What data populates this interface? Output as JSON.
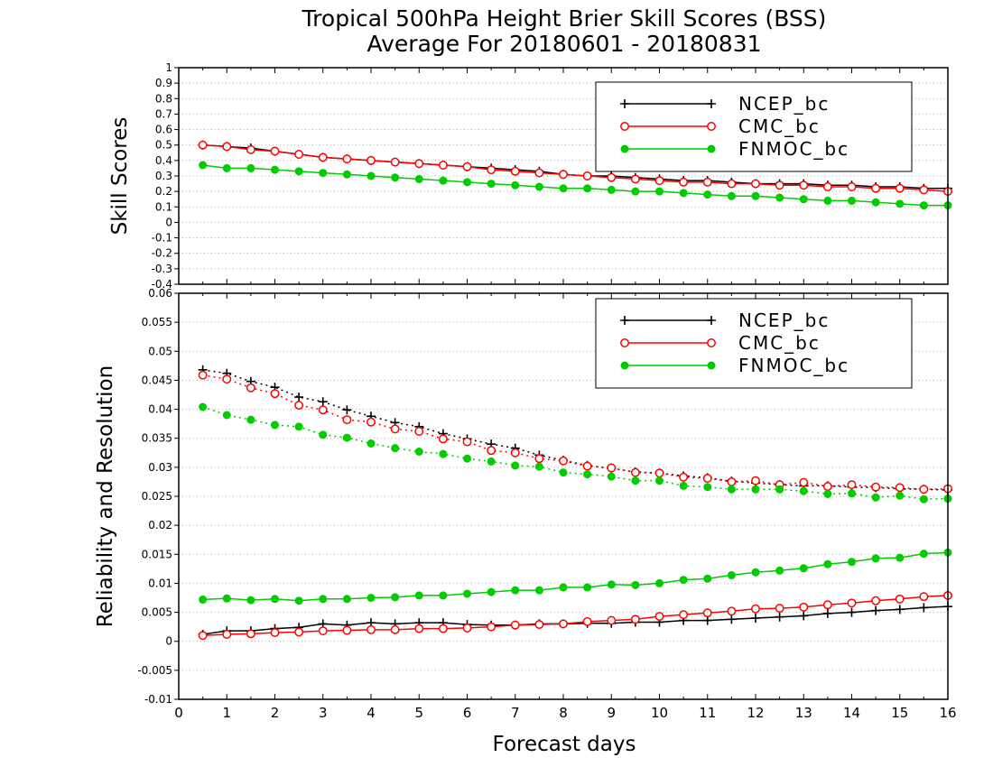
{
  "chart_data": [
    {
      "type": "line",
      "title": "Tropical 500hPa Height Brier Skill Scores (BSS)",
      "subtitle": "Average For 20180601 - 20180831",
      "ylabel": "Skill Scores",
      "xlabel": "",
      "xlim": [
        0,
        16
      ],
      "ylim": [
        -0.4,
        1
      ],
      "y_ticks": [
        "-0.4",
        "-0.3",
        "-0.2",
        "-0.1",
        "0",
        "0.1",
        "0.2",
        "0.3",
        "0.4",
        "0.5",
        "0.6",
        "0.7",
        "0.8",
        "0.9",
        "1"
      ],
      "grid": true,
      "legend_position": "top-right",
      "x": [
        0.5,
        1,
        1.5,
        2,
        2.5,
        3,
        3.5,
        4,
        4.5,
        5,
        5.5,
        6,
        6.5,
        7,
        7.5,
        8,
        8.5,
        9,
        9.5,
        10,
        10.5,
        11,
        11.5,
        12,
        12.5,
        13,
        13.5,
        14,
        14.5,
        15,
        15.5,
        16
      ],
      "series": [
        {
          "name": "NCEP_bc",
          "color": "#000000",
          "marker": "plus",
          "line": "solid",
          "values": [
            0.5,
            0.49,
            0.48,
            0.46,
            0.44,
            0.42,
            0.41,
            0.4,
            0.39,
            0.38,
            0.37,
            0.36,
            0.35,
            0.34,
            0.33,
            0.31,
            0.3,
            0.3,
            0.29,
            0.28,
            0.27,
            0.27,
            0.26,
            0.25,
            0.25,
            0.25,
            0.24,
            0.24,
            0.23,
            0.23,
            0.22,
            0.22
          ]
        },
        {
          "name": "CMC_bc",
          "color": "#ff0000",
          "marker": "open-circle",
          "line": "solid",
          "values": [
            0.5,
            0.49,
            0.47,
            0.46,
            0.44,
            0.42,
            0.41,
            0.4,
            0.39,
            0.38,
            0.37,
            0.36,
            0.34,
            0.33,
            0.32,
            0.31,
            0.3,
            0.29,
            0.28,
            0.27,
            0.26,
            0.26,
            0.25,
            0.25,
            0.24,
            0.24,
            0.23,
            0.23,
            0.22,
            0.22,
            0.21,
            0.2
          ]
        },
        {
          "name": "FNMOC_bc",
          "color": "#00cc00",
          "marker": "filled-circle",
          "line": "solid",
          "values": [
            0.37,
            0.35,
            0.35,
            0.34,
            0.33,
            0.32,
            0.31,
            0.3,
            0.29,
            0.28,
            0.27,
            0.26,
            0.25,
            0.24,
            0.23,
            0.22,
            0.22,
            0.21,
            0.2,
            0.2,
            0.19,
            0.18,
            0.17,
            0.17,
            0.16,
            0.15,
            0.14,
            0.14,
            0.13,
            0.12,
            0.11,
            0.11
          ]
        }
      ]
    },
    {
      "type": "line",
      "ylabel": "Reliability and Resolution",
      "xlabel": "Forecast days",
      "xlim": [
        0,
        16
      ],
      "ylim": [
        -0.01,
        0.06
      ],
      "x_ticks": [
        "0",
        "1",
        "2",
        "3",
        "4",
        "5",
        "6",
        "7",
        "8",
        "9",
        "10",
        "11",
        "12",
        "13",
        "14",
        "15",
        "16"
      ],
      "y_ticks": [
        "-0.01",
        "-0.005",
        "0",
        "0.005",
        "0.01",
        "0.015",
        "0.02",
        "0.025",
        "0.03",
        "0.035",
        "0.04",
        "0.045",
        "0.05",
        "0.055",
        "0.06"
      ],
      "grid": true,
      "legend_position": "top-right",
      "x": [
        0.5,
        1,
        1.5,
        2,
        2.5,
        3,
        3.5,
        4,
        4.5,
        5,
        5.5,
        6,
        6.5,
        7,
        7.5,
        8,
        8.5,
        9,
        9.5,
        10,
        10.5,
        11,
        11.5,
        12,
        12.5,
        13,
        13.5,
        14,
        14.5,
        15,
        15.5,
        16
      ],
      "series": [
        {
          "name": "NCEP_bc",
          "color": "#000000",
          "marker": "plus",
          "line": "dotted",
          "values": [
            0.0468,
            0.0462,
            0.0448,
            0.0438,
            0.0421,
            0.0413,
            0.0399,
            0.0388,
            0.0377,
            0.037,
            0.0358,
            0.0349,
            0.034,
            0.0333,
            0.0321,
            0.0312,
            0.0303,
            0.0298,
            0.0292,
            0.029,
            0.0285,
            0.0282,
            0.0276,
            0.0273,
            0.027,
            0.0268,
            0.0268,
            0.0266,
            0.0265,
            0.0263,
            0.0262,
            0.0261
          ]
        },
        {
          "name": "CMC_bc",
          "color": "#ff0000",
          "marker": "open-circle",
          "line": "dotted",
          "values": [
            0.0459,
            0.0452,
            0.0437,
            0.0427,
            0.0407,
            0.0399,
            0.0382,
            0.0378,
            0.0366,
            0.0362,
            0.0349,
            0.0344,
            0.0329,
            0.0325,
            0.0315,
            0.0311,
            0.0302,
            0.0299,
            0.0291,
            0.029,
            0.0283,
            0.0281,
            0.0275,
            0.0277,
            0.027,
            0.0274,
            0.0267,
            0.027,
            0.0266,
            0.0265,
            0.0262,
            0.0263
          ]
        },
        {
          "name": "FNMOC_bc",
          "color": "#00cc00",
          "marker": "filled-circle",
          "line": "dotted",
          "values": [
            0.0404,
            0.039,
            0.0382,
            0.0373,
            0.037,
            0.0356,
            0.0351,
            0.0341,
            0.0333,
            0.0327,
            0.0323,
            0.0315,
            0.031,
            0.0303,
            0.0301,
            0.0291,
            0.0288,
            0.0284,
            0.0277,
            0.0277,
            0.0268,
            0.0266,
            0.0262,
            0.0262,
            0.0262,
            0.0259,
            0.0254,
            0.0255,
            0.0248,
            0.0251,
            0.0245,
            0.0246
          ]
        },
        {
          "name": "",
          "color": "#000000",
          "marker": "plus",
          "line": "solid",
          "values": [
            0.0012,
            0.0018,
            0.0018,
            0.0022,
            0.0024,
            0.003,
            0.0028,
            0.0032,
            0.003,
            0.0032,
            0.0032,
            0.0029,
            0.0028,
            0.0028,
            0.003,
            0.003,
            0.0031,
            0.0031,
            0.0033,
            0.0033,
            0.0036,
            0.0036,
            0.0038,
            0.004,
            0.0042,
            0.0044,
            0.0048,
            0.005,
            0.0053,
            0.0055,
            0.0058,
            0.006
          ]
        },
        {
          "name": "",
          "color": "#ff0000",
          "marker": "open-circle",
          "line": "solid",
          "values": [
            0.001,
            0.0012,
            0.0013,
            0.0015,
            0.0016,
            0.0018,
            0.0019,
            0.002,
            0.002,
            0.0022,
            0.0022,
            0.0023,
            0.0025,
            0.0028,
            0.0029,
            0.003,
            0.0034,
            0.0036,
            0.0038,
            0.0043,
            0.0046,
            0.0049,
            0.0052,
            0.0056,
            0.0057,
            0.0059,
            0.0063,
            0.0066,
            0.007,
            0.0073,
            0.0077,
            0.0079
          ]
        },
        {
          "name": "",
          "color": "#00cc00",
          "marker": "filled-circle",
          "line": "solid",
          "values": [
            0.0072,
            0.0074,
            0.0071,
            0.0073,
            0.007,
            0.0073,
            0.0073,
            0.0075,
            0.0076,
            0.0079,
            0.0079,
            0.0082,
            0.0085,
            0.0088,
            0.0088,
            0.0093,
            0.0093,
            0.0098,
            0.0097,
            0.01,
            0.0106,
            0.0108,
            0.0114,
            0.0119,
            0.0122,
            0.0126,
            0.0133,
            0.0137,
            0.0143,
            0.0144,
            0.0151,
            0.0153
          ]
        }
      ]
    }
  ]
}
